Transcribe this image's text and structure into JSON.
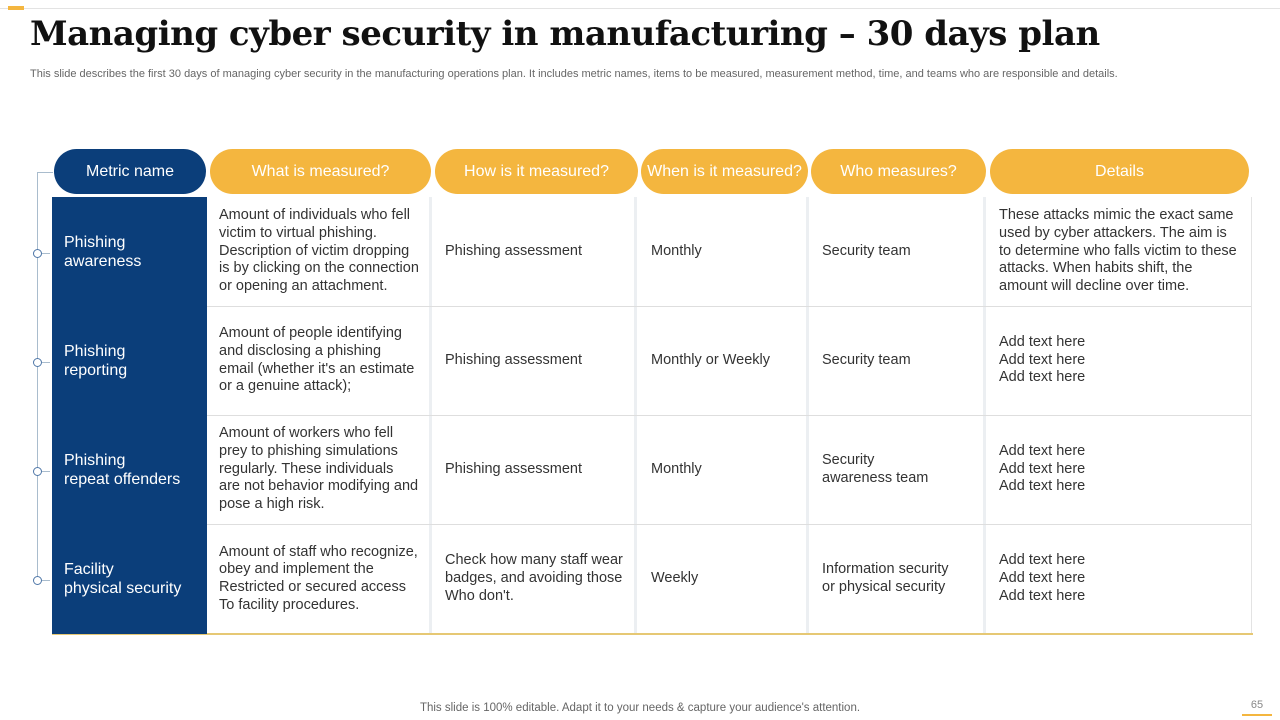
{
  "title": "Managing cyber security in manufacturing – 30 days plan",
  "subtitle": "This slide describes the first 30 days of managing cyber security in the manufacturing operations plan. It includes metric names, items to be measured, measurement method, time, and teams who are responsible and details.",
  "colors": {
    "navy": "#0b3e7a",
    "accent": "#f4b63f"
  },
  "table": {
    "headers": [
      "Metric name",
      "What is measured?",
      "How is it measured?",
      "When is it measured?",
      "Who measures?",
      "Details"
    ],
    "rows": [
      {
        "metric": "Phishing\nawareness",
        "what": "Amount of individuals who fell\nvictim to virtual phishing.\nDescription of victim dropping\nis by clicking on the connection\nor opening an attachment.",
        "how": "Phishing assessment",
        "when": "Monthly",
        "who": "Security team",
        "details": "These attacks mimic the exact same\nused by cyber attackers. The aim is\nto determine who falls victim to these\nattacks. When habits shift, the\namount will decline over time."
      },
      {
        "metric": "Phishing\nreporting",
        "what": "Amount of people identifying\nand disclosing a phishing\nemail (whether it's an estimate\nor a genuine attack);",
        "how": "Phishing assessment",
        "when": "Monthly or Weekly",
        "who": "Security team",
        "details": "Add text here\nAdd text here\nAdd text here"
      },
      {
        "metric": "Phishing\nrepeat offenders",
        "what": "Amount of workers who fell\nprey to phishing simulations\nregularly. These individuals\nare not behavior modifying and\npose a high risk.",
        "how": "Phishing assessment",
        "when": "Monthly",
        "who": "Security\nawareness team",
        "details": "Add text here\nAdd text here\nAdd text here"
      },
      {
        "metric": "Facility\nphysical security",
        "what": "Amount of staff who recognize,\nobey and implement the\nRestricted or secured access\nTo facility procedures.",
        "how": "Check how many staff wear\nbadges, and avoiding those\nWho don't.",
        "when": "Weekly",
        "who": "Information security\nor physical security",
        "details": "Add text here\nAdd text here\nAdd text here"
      }
    ]
  },
  "footer": "This slide is 100% editable. Adapt it to your needs & capture your audience's attention.",
  "page_number": "65"
}
